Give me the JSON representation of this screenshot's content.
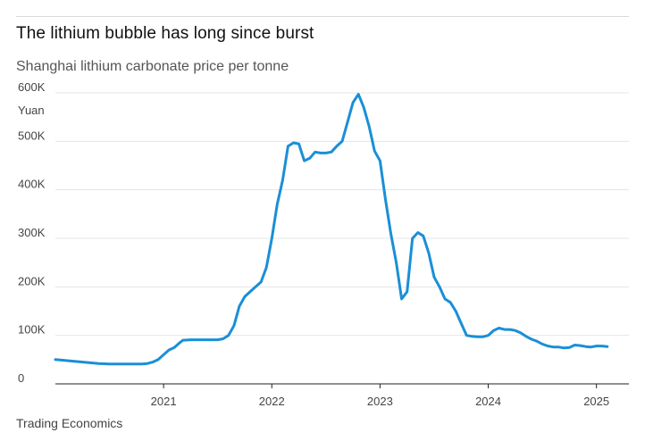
{
  "title": "The lithium bubble has long since burst",
  "subtitle": "Shanghai lithium carbonate price per tonne",
  "source": "Trading Economics",
  "colors": {
    "line": "#1a8fd6",
    "grid": "#e4e4e4",
    "axis": "#222222"
  },
  "chart_data": {
    "type": "line",
    "title": "The lithium bubble has long since burst",
    "subtitle": "Shanghai lithium carbonate price per tonne",
    "ylabel": "Yuan",
    "xlabel": "",
    "ylim": [
      0,
      600000
    ],
    "xlim": [
      2020.0,
      2025.3
    ],
    "grid": true,
    "y_ticks": [
      {
        "value": 0,
        "label": "0"
      },
      {
        "value": 100000,
        "label": "100K"
      },
      {
        "value": 200000,
        "label": "200K"
      },
      {
        "value": 300000,
        "label": "300K"
      },
      {
        "value": 400000,
        "label": "400K"
      },
      {
        "value": 500000,
        "label": "500K"
      },
      {
        "value": 600000,
        "label": "600K"
      }
    ],
    "x_ticks": [
      {
        "value": 2021,
        "label": "2021"
      },
      {
        "value": 2022,
        "label": "2022"
      },
      {
        "value": 2023,
        "label": "2023"
      },
      {
        "value": 2024,
        "label": "2024"
      },
      {
        "value": 2025,
        "label": "2025"
      }
    ],
    "series": [
      {
        "x": [
          2020.0,
          2020.1,
          2020.2,
          2020.3,
          2020.4,
          2020.5,
          2020.6,
          2020.7,
          2020.8,
          2020.85,
          2020.9,
          2020.95,
          2021.0,
          2021.05,
          2021.1,
          2021.15,
          2021.18,
          2021.25,
          2021.3,
          2021.4,
          2021.5,
          2021.55,
          2021.6,
          2021.65,
          2021.7,
          2021.75,
          2021.8,
          2021.85,
          2021.9,
          2021.95,
          2022.0,
          2022.05,
          2022.1,
          2022.15,
          2022.2,
          2022.25,
          2022.3,
          2022.35,
          2022.4,
          2022.45,
          2022.5,
          2022.55,
          2022.6,
          2022.65,
          2022.7,
          2022.75,
          2022.8,
          2022.85,
          2022.9,
          2022.95,
          2023.0,
          2023.05,
          2023.1,
          2023.15,
          2023.2,
          2023.25,
          2023.3,
          2023.35,
          2023.4,
          2023.45,
          2023.5,
          2023.55,
          2023.6,
          2023.65,
          2023.7,
          2023.75,
          2023.8,
          2023.85,
          2023.9,
          2023.95,
          2024.0,
          2024.05,
          2024.1,
          2024.15,
          2024.2,
          2024.25,
          2024.3,
          2024.35,
          2024.4,
          2024.45,
          2024.5,
          2024.55,
          2024.6,
          2024.65,
          2024.7,
          2024.75,
          2024.8,
          2024.85,
          2024.9,
          2024.95,
          2025.0,
          2025.05,
          2025.1
        ],
        "values": [
          50000,
          48000,
          46000,
          44000,
          42000,
          41000,
          41000,
          41000,
          41000,
          42000,
          45000,
          50000,
          60000,
          70000,
          75000,
          85000,
          90000,
          91000,
          91000,
          91000,
          91000,
          93000,
          100000,
          120000,
          160000,
          180000,
          190000,
          200000,
          210000,
          240000,
          300000,
          370000,
          420000,
          490000,
          497000,
          495000,
          460000,
          465000,
          478000,
          476000,
          476000,
          478000,
          490000,
          500000,
          540000,
          580000,
          597000,
          570000,
          530000,
          480000,
          460000,
          380000,
          310000,
          250000,
          175000,
          190000,
          300000,
          312000,
          305000,
          270000,
          220000,
          200000,
          175000,
          168000,
          150000,
          125000,
          100000,
          98000,
          97000,
          97000,
          100000,
          110000,
          115000,
          112000,
          112000,
          110000,
          105000,
          98000,
          92000,
          88000,
          82000,
          78000,
          76000,
          76000,
          74000,
          75000,
          80000,
          79000,
          77000,
          76000,
          78000,
          78000,
          77000
        ]
      }
    ]
  }
}
